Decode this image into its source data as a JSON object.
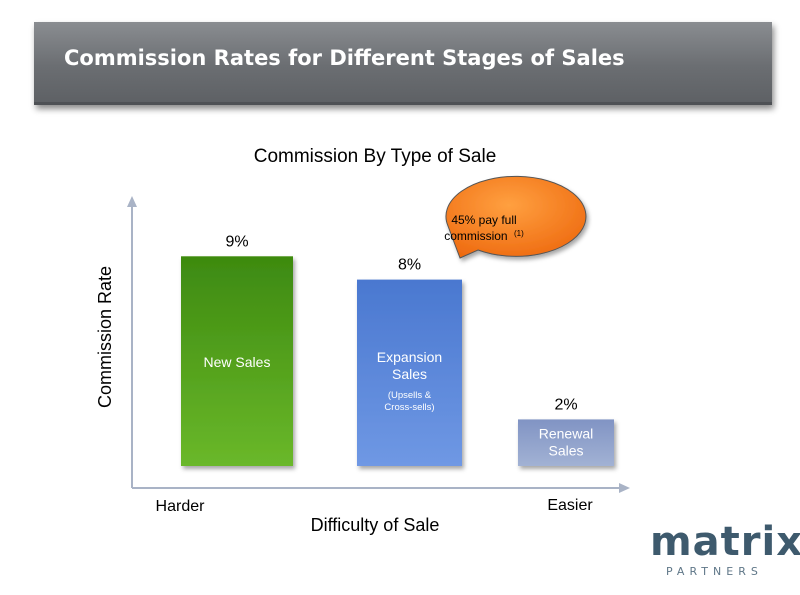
{
  "header": {
    "title": "Commission Rates for Different Stages of Sales"
  },
  "chart_data": {
    "type": "bar",
    "title": "Commission By Type of Sale",
    "xlabel": "Difficulty of Sale",
    "ylabel": "Commission Rate",
    "x_left_label": "Harder",
    "x_right_label": "Easier",
    "ylim": [
      0,
      10
    ],
    "categories": [
      {
        "label_lines": [
          "New Sales"
        ],
        "sub_lines": []
      },
      {
        "label_lines": [
          "Expansion",
          "Sales"
        ],
        "sub_lines": [
          "(Upsells &",
          "Cross-sells)"
        ]
      },
      {
        "label_lines": [
          "Renewal",
          "Sales"
        ],
        "sub_lines": []
      }
    ],
    "values": [
      9,
      8,
      2
    ],
    "value_labels": [
      "9%",
      "8%",
      "2%"
    ],
    "colors": [
      "#4e9a18",
      "#5b86d6",
      "#8ea0c8"
    ],
    "grid": false,
    "legend": "none",
    "callout": {
      "line1": "45% pay full",
      "line2": "commission",
      "superscript": "(1)",
      "color": "#f47a18"
    }
  },
  "logo": {
    "word": "matrix",
    "sub": "PARTNERS"
  }
}
